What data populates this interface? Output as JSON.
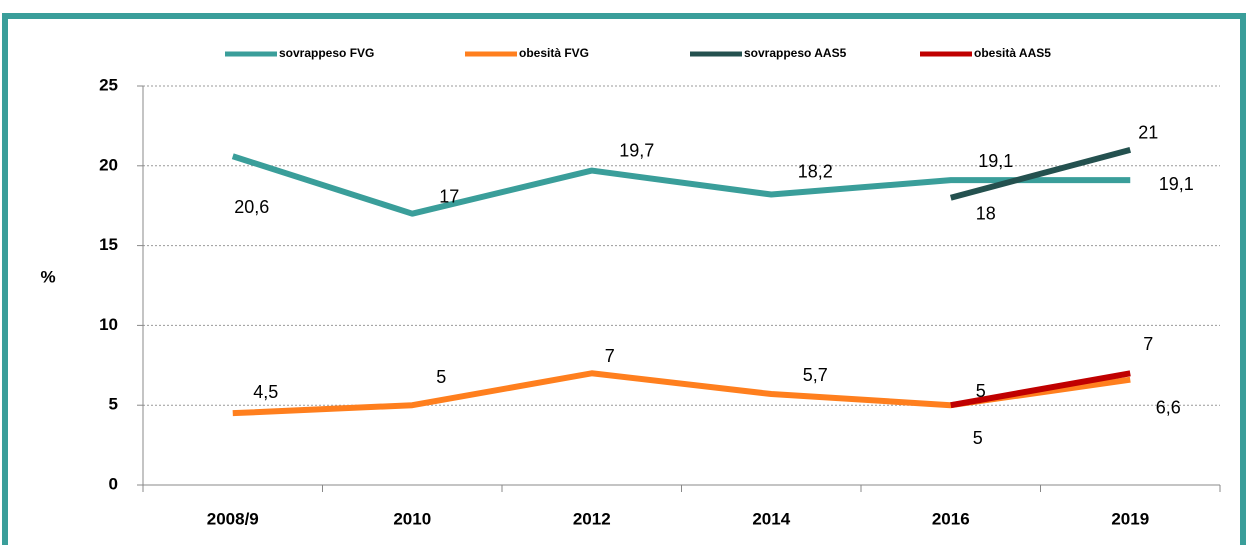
{
  "chart_data": {
    "type": "line",
    "y_label": "%",
    "categories": [
      "2008/9",
      "2010",
      "2012",
      "2014",
      "2016",
      "2019"
    ],
    "series": [
      {
        "name": "sovrappeso FVG",
        "color": "#3a9e9a",
        "values": [
          20.6,
          17,
          19.7,
          18.2,
          19.1,
          19.1
        ],
        "value_labels": [
          "20,6",
          "17",
          "19,7",
          "18,2",
          "19,1",
          "19,1"
        ]
      },
      {
        "name": "obesità FVG",
        "color": "#ff7f1e",
        "values": [
          4.5,
          5,
          7,
          5.7,
          5,
          6.6
        ],
        "value_labels": [
          "4,5",
          "5",
          "7",
          "5,7",
          "5",
          "6,6"
        ]
      },
      {
        "name": "sovrappeso AAS5",
        "color": "#24514f",
        "values": [
          null,
          null,
          null,
          null,
          18,
          21
        ],
        "value_labels": [
          null,
          null,
          null,
          null,
          "18",
          "21"
        ]
      },
      {
        "name": "obesità AAS5",
        "color": "#c00000",
        "values": [
          null,
          null,
          null,
          null,
          5,
          7
        ],
        "value_labels": [
          null,
          null,
          null,
          null,
          "5",
          "7"
        ]
      }
    ],
    "ylim": [
      0,
      25
    ],
    "yticks": [
      0,
      5,
      10,
      15,
      20,
      25
    ],
    "grid": true,
    "legend": "top"
  }
}
